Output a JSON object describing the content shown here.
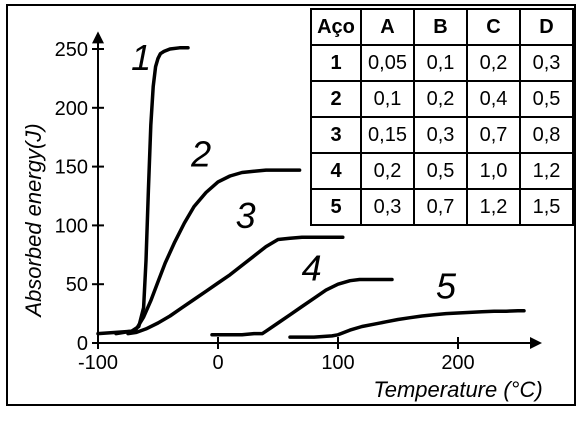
{
  "chart_data": {
    "type": "line",
    "xlabel": "Temperature (°C)",
    "ylabel": "Absorbed energy(J)",
    "xlim": [
      -100,
      270
    ],
    "ylim": [
      0,
      265
    ],
    "x_ticks": [
      -100,
      0,
      100,
      200
    ],
    "x_tick_labels": [
      "-100",
      "0",
      "100",
      "200"
    ],
    "y_ticks": [
      0,
      50,
      100,
      150,
      200,
      250
    ],
    "y_tick_labels": [
      "0",
      "50",
      "100",
      "150",
      "200",
      "250"
    ],
    "grid": false,
    "series": [
      {
        "name": "1",
        "x": [
          -100,
          -85,
          -72,
          -66,
          -62,
          -60,
          -58,
          -56,
          -54,
          -52,
          -50,
          -48,
          -45,
          -40,
          -32,
          -25
        ],
        "y": [
          8,
          9,
          10,
          14,
          30,
          70,
          130,
          185,
          218,
          235,
          242,
          246,
          248,
          250,
          251,
          251
        ]
      },
      {
        "name": "2",
        "x": [
          -85,
          -72,
          -68,
          -62,
          -56,
          -50,
          -44,
          -36,
          -28,
          -20,
          -10,
          0,
          10,
          20,
          30,
          40,
          50,
          60,
          68
        ],
        "y": [
          8,
          10,
          12,
          22,
          36,
          52,
          68,
          86,
          102,
          116,
          128,
          137,
          142,
          145,
          146,
          147,
          147,
          147,
          147
        ]
      },
      {
        "name": "3",
        "x": [
          -75,
          -68,
          -60,
          -50,
          -40,
          -30,
          -20,
          -10,
          0,
          10,
          20,
          30,
          40,
          50,
          60,
          70,
          80,
          90,
          100,
          104
        ],
        "y": [
          8,
          9,
          12,
          17,
          23,
          30,
          37,
          44,
          51,
          58,
          66,
          74,
          82,
          88,
          89,
          90,
          90,
          90,
          90,
          90
        ]
      },
      {
        "name": "4",
        "x": [
          -5,
          10,
          20,
          30,
          37,
          40,
          50,
          60,
          70,
          80,
          90,
          100,
          110,
          118,
          125,
          130,
          138,
          145
        ],
        "y": [
          7,
          7,
          7,
          8,
          8,
          10,
          17,
          24,
          31,
          38,
          45,
          50,
          53,
          54,
          54,
          54,
          54,
          54
        ]
      },
      {
        "name": "5",
        "x": [
          60,
          80,
          95,
          100,
          110,
          120,
          130,
          140,
          150,
          160,
          170,
          180,
          190,
          200,
          210,
          220,
          230,
          240,
          250,
          255
        ],
        "y": [
          5,
          5,
          6,
          7,
          11,
          14,
          16,
          18,
          20,
          21.5,
          23,
          24,
          25,
          25.5,
          26,
          26.5,
          27,
          27,
          27.5,
          27.5
        ]
      }
    ],
    "curve_labels": [
      {
        "text": "1",
        "x": -64,
        "y": 232
      },
      {
        "text": "2",
        "x": -14,
        "y": 150
      },
      {
        "text": "3",
        "x": 23,
        "y": 98
      },
      {
        "text": "4",
        "x": 78,
        "y": 53
      },
      {
        "text": "5",
        "x": 190,
        "y": 38
      }
    ],
    "table": {
      "columns": [
        "Aço",
        "A",
        "B",
        "C",
        "D"
      ],
      "rows": [
        [
          "1",
          "0,05",
          "0,1",
          "0,2",
          "0,3"
        ],
        [
          "2",
          "0,1",
          "0,2",
          "0,4",
          "0,5"
        ],
        [
          "3",
          "0,15",
          "0,3",
          "0,7",
          "0,8"
        ],
        [
          "4",
          "0,2",
          "0,5",
          "1,0",
          "1,2"
        ],
        [
          "5",
          "0,3",
          "0,7",
          "1,2",
          "1,5"
        ]
      ]
    }
  }
}
